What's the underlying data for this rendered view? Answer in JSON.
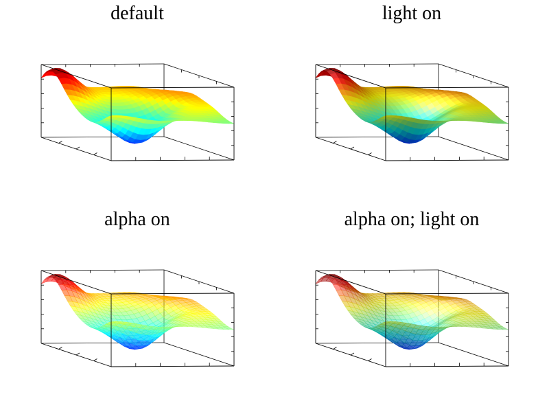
{
  "figure": {
    "panels": [
      {
        "title": "default"
      },
      {
        "title": "light on"
      },
      {
        "title": "alpha on"
      },
      {
        "title": "alpha on; light on"
      }
    ]
  },
  "chart_data": [
    {
      "type": "surface",
      "title": "default",
      "light": false,
      "alpha": 1.0,
      "colormap": "jet",
      "grid": false,
      "box": true
    },
    {
      "type": "surface",
      "title": "light on",
      "light": true,
      "alpha": 1.0,
      "colormap": "jet",
      "grid": false,
      "box": true
    },
    {
      "type": "surface",
      "title": "alpha on",
      "light": false,
      "alpha": 0.55,
      "colormap": "jet",
      "grid": false,
      "box": true
    },
    {
      "type": "surface",
      "title": "alpha on; light on",
      "light": true,
      "alpha": 0.55,
      "colormap": "jet",
      "grid": false,
      "box": true
    }
  ]
}
